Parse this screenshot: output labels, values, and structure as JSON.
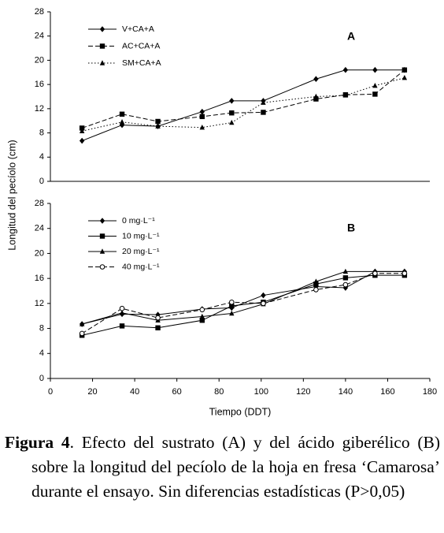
{
  "chart_data": [
    {
      "type": "line",
      "panel_label": "A",
      "ylabel": "Longitud del pecíolo (cm)",
      "x": [
        15,
        34,
        51,
        72,
        86,
        101,
        126,
        140,
        154,
        168
      ],
      "xlim": [
        0,
        180
      ],
      "ylim": [
        0,
        28
      ],
      "yticks": [
        0,
        4,
        8,
        12,
        16,
        20,
        24,
        28
      ],
      "legend": "top-left",
      "series": [
        {
          "name": "V+CA+A",
          "color": "#000000",
          "line_style": "solid",
          "marker": "diamond",
          "values": [
            6.7,
            9.3,
            9.1,
            11.5,
            13.3,
            13.3,
            16.9,
            18.4,
            18.4,
            18.4
          ]
        },
        {
          "name": "AC+CA+A",
          "color": "#000000",
          "line_style": "dashed",
          "marker": "square",
          "values": [
            8.8,
            11.1,
            9.9,
            10.7,
            11.3,
            11.4,
            13.6,
            14.3,
            14.4,
            18.4
          ]
        },
        {
          "name": "SM+CA+A",
          "color": "#000000",
          "line_style": "dotted",
          "marker": "triangle",
          "values": [
            8.3,
            9.8,
            9.1,
            8.9,
            9.7,
            13.0,
            14.0,
            14.2,
            15.8,
            17.1
          ]
        }
      ]
    },
    {
      "type": "line",
      "panel_label": "B",
      "xlabel": "Tiempo (DDT)",
      "x": [
        15,
        34,
        51,
        72,
        86,
        101,
        126,
        140,
        154,
        168
      ],
      "xlim": [
        0,
        180
      ],
      "xticks": [
        0,
        20,
        40,
        60,
        80,
        100,
        120,
        140,
        160,
        180
      ],
      "ylim": [
        0,
        28
      ],
      "yticks": [
        0,
        4,
        8,
        12,
        16,
        20,
        24,
        28
      ],
      "legend": "top-left",
      "series": [
        {
          "name": "0 mg·L⁻¹",
          "color": "#000000",
          "line_style": "solid",
          "marker": "diamond",
          "values": [
            8.7,
            10.3,
            10.2,
            11.1,
            11.3,
            13.3,
            14.7,
            14.5,
            17.1,
            17.1
          ]
        },
        {
          "name": "10 mg·L⁻¹",
          "color": "#000000",
          "line_style": "solid",
          "marker": "square",
          "values": [
            6.9,
            8.4,
            8.1,
            9.3,
            11.6,
            12.2,
            15.1,
            16.1,
            16.5,
            16.5
          ]
        },
        {
          "name": "20 mg·L⁻¹",
          "color": "#000000",
          "line_style": "solid",
          "marker": "triangle",
          "values": [
            8.7,
            10.5,
            9.3,
            9.9,
            10.4,
            11.9,
            15.5,
            17.1,
            17.1,
            17.1
          ]
        },
        {
          "name": "40 mg·L⁻¹",
          "color": "#000000",
          "line_style": "dashed",
          "marker": "circle-open",
          "values": [
            7.2,
            11.2,
            9.7,
            11.0,
            12.2,
            12.0,
            14.2,
            15.0,
            16.8,
            16.8
          ]
        }
      ]
    }
  ],
  "caption": {
    "label": "Figura 4",
    "text": ". Efecto del sustrato (A) y del ácido giberélico (B) sobre la longitud del pecíolo de la hoja en fresa ‘Camarosa’ durante el ensayo. Sin diferencias estadísticas (P>0,05)"
  }
}
